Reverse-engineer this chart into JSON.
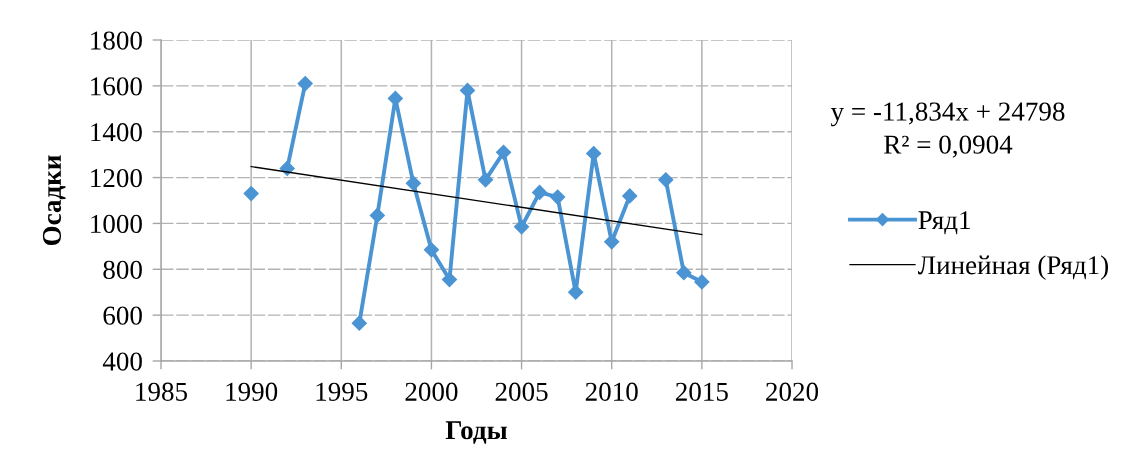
{
  "chart_data": {
    "type": "line",
    "xlabel": "Годы",
    "ylabel": "Осадки",
    "xlim": [
      1985,
      2020
    ],
    "xticks": [
      1985,
      1990,
      1995,
      2000,
      2005,
      2010,
      2015,
      2020
    ],
    "ylim": [
      400,
      1800
    ],
    "yticks": [
      400,
      600,
      800,
      1000,
      1200,
      1400,
      1600,
      1800
    ],
    "grid": true,
    "legend": "right",
    "marker": "diamond",
    "line_style": "solid",
    "annotations": [
      "y = -11,834x + 24798",
      "R² = 0,0904"
    ],
    "series": [
      {
        "name": "Ряд1",
        "color": "#4b94d3",
        "x": [
          1990,
          1991,
          1992,
          1993,
          1994,
          1995,
          1996,
          1997,
          1998,
          1999,
          2000,
          2001,
          2002,
          2003,
          2004,
          2005,
          2006,
          2007,
          2008,
          2009,
          2010,
          2011,
          2012,
          2013,
          2014,
          2015
        ],
        "values": [
          1130,
          null,
          1240,
          1610,
          null,
          null,
          565,
          1035,
          1545,
          1175,
          885,
          755,
          1580,
          1190,
          1310,
          985,
          1135,
          1115,
          700,
          1305,
          920,
          1120,
          null,
          1190,
          785,
          745
        ]
      },
      {
        "name": "Линейная (Ряд1)",
        "type": "line",
        "color": "#000000",
        "marker": "none",
        "x": [
          1990,
          2015
        ],
        "values": [
          1248,
          952
        ]
      }
    ]
  }
}
